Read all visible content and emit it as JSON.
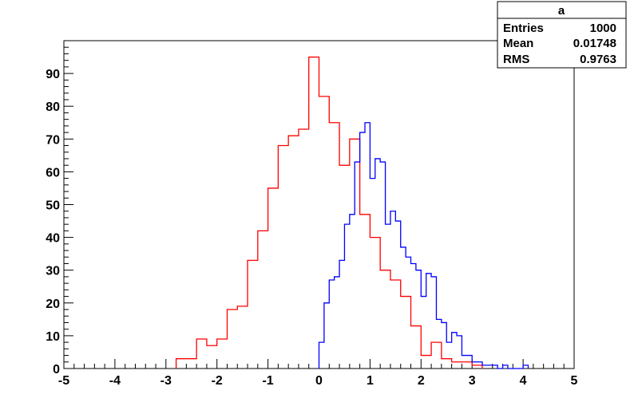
{
  "stats_box": {
    "title": "a",
    "rows": [
      {
        "label": "Entries",
        "value": "1000"
      },
      {
        "label": "Mean",
        "value": "0.01748"
      },
      {
        "label": "RMS",
        "value": "0.9763"
      }
    ]
  },
  "chart_data": {
    "type": "histogram",
    "title": "",
    "xlabel": "",
    "ylabel": "",
    "xlim": [
      -5,
      5
    ],
    "ylim": [
      0,
      100
    ],
    "x_ticks": [
      "-5",
      "-4",
      "-3",
      "-2",
      "-1",
      "0",
      "1",
      "2",
      "3",
      "4",
      "5"
    ],
    "y_ticks": [
      "0",
      "10",
      "20",
      "30",
      "40",
      "50",
      "60",
      "70",
      "80",
      "90"
    ],
    "grid": false,
    "series": [
      {
        "color": "#ff0000",
        "bin_width": 0.2,
        "bins": [
          {
            "x": -2.8,
            "y": 3
          },
          {
            "x": -2.6,
            "y": 3
          },
          {
            "x": -2.4,
            "y": 9
          },
          {
            "x": -2.2,
            "y": 7
          },
          {
            "x": -2.0,
            "y": 9
          },
          {
            "x": -1.8,
            "y": 18
          },
          {
            "x": -1.6,
            "y": 19
          },
          {
            "x": -1.4,
            "y": 33
          },
          {
            "x": -1.2,
            "y": 42
          },
          {
            "x": -1.0,
            "y": 55
          },
          {
            "x": -0.8,
            "y": 68
          },
          {
            "x": -0.6,
            "y": 71
          },
          {
            "x": -0.4,
            "y": 73
          },
          {
            "x": -0.2,
            "y": 95
          },
          {
            "x": 0.0,
            "y": 83
          },
          {
            "x": 0.2,
            "y": 75
          },
          {
            "x": 0.4,
            "y": 62
          },
          {
            "x": 0.6,
            "y": 70
          },
          {
            "x": 0.8,
            "y": 47
          },
          {
            "x": 1.0,
            "y": 40
          },
          {
            "x": 1.2,
            "y": 30
          },
          {
            "x": 1.4,
            "y": 27
          },
          {
            "x": 1.6,
            "y": 22
          },
          {
            "x": 1.8,
            "y": 13
          },
          {
            "x": 2.0,
            "y": 4
          },
          {
            "x": 2.2,
            "y": 8
          },
          {
            "x": 2.4,
            "y": 3
          },
          {
            "x": 2.6,
            "y": 2
          },
          {
            "x": 2.8,
            "y": 2
          },
          {
            "x": 3.0,
            "y": 1
          }
        ]
      },
      {
        "color": "#0000ff",
        "bin_width": 0.1,
        "bins": [
          {
            "x": 0.0,
            "y": 8
          },
          {
            "x": 0.1,
            "y": 20
          },
          {
            "x": 0.2,
            "y": 27
          },
          {
            "x": 0.3,
            "y": 28
          },
          {
            "x": 0.4,
            "y": 33
          },
          {
            "x": 0.5,
            "y": 44
          },
          {
            "x": 0.6,
            "y": 47
          },
          {
            "x": 0.7,
            "y": 63
          },
          {
            "x": 0.8,
            "y": 72
          },
          {
            "x": 0.9,
            "y": 75
          },
          {
            "x": 1.0,
            "y": 58
          },
          {
            "x": 1.1,
            "y": 64
          },
          {
            "x": 1.2,
            "y": 63
          },
          {
            "x": 1.3,
            "y": 44
          },
          {
            "x": 1.4,
            "y": 48
          },
          {
            "x": 1.5,
            "y": 45
          },
          {
            "x": 1.6,
            "y": 37
          },
          {
            "x": 1.7,
            "y": 34
          },
          {
            "x": 1.8,
            "y": 32
          },
          {
            "x": 1.9,
            "y": 30
          },
          {
            "x": 2.0,
            "y": 22
          },
          {
            "x": 2.1,
            "y": 29
          },
          {
            "x": 2.2,
            "y": 28
          },
          {
            "x": 2.3,
            "y": 15
          },
          {
            "x": 2.4,
            "y": 14
          },
          {
            "x": 2.5,
            "y": 8
          },
          {
            "x": 2.6,
            "y": 11
          },
          {
            "x": 2.7,
            "y": 10
          },
          {
            "x": 2.8,
            "y": 4
          },
          {
            "x": 2.9,
            "y": 4
          },
          {
            "x": 3.0,
            "y": 2
          },
          {
            "x": 3.1,
            "y": 2
          },
          {
            "x": 3.2,
            "y": 1
          },
          {
            "x": 3.3,
            "y": 1
          },
          {
            "x": 3.4,
            "y": 1
          },
          {
            "x": 3.5,
            "y": 0
          },
          {
            "x": 3.6,
            "y": 1
          },
          {
            "x": 3.7,
            "y": 0
          },
          {
            "x": 3.8,
            "y": 0
          },
          {
            "x": 3.9,
            "y": 0
          },
          {
            "x": 4.0,
            "y": 1
          }
        ]
      }
    ]
  }
}
